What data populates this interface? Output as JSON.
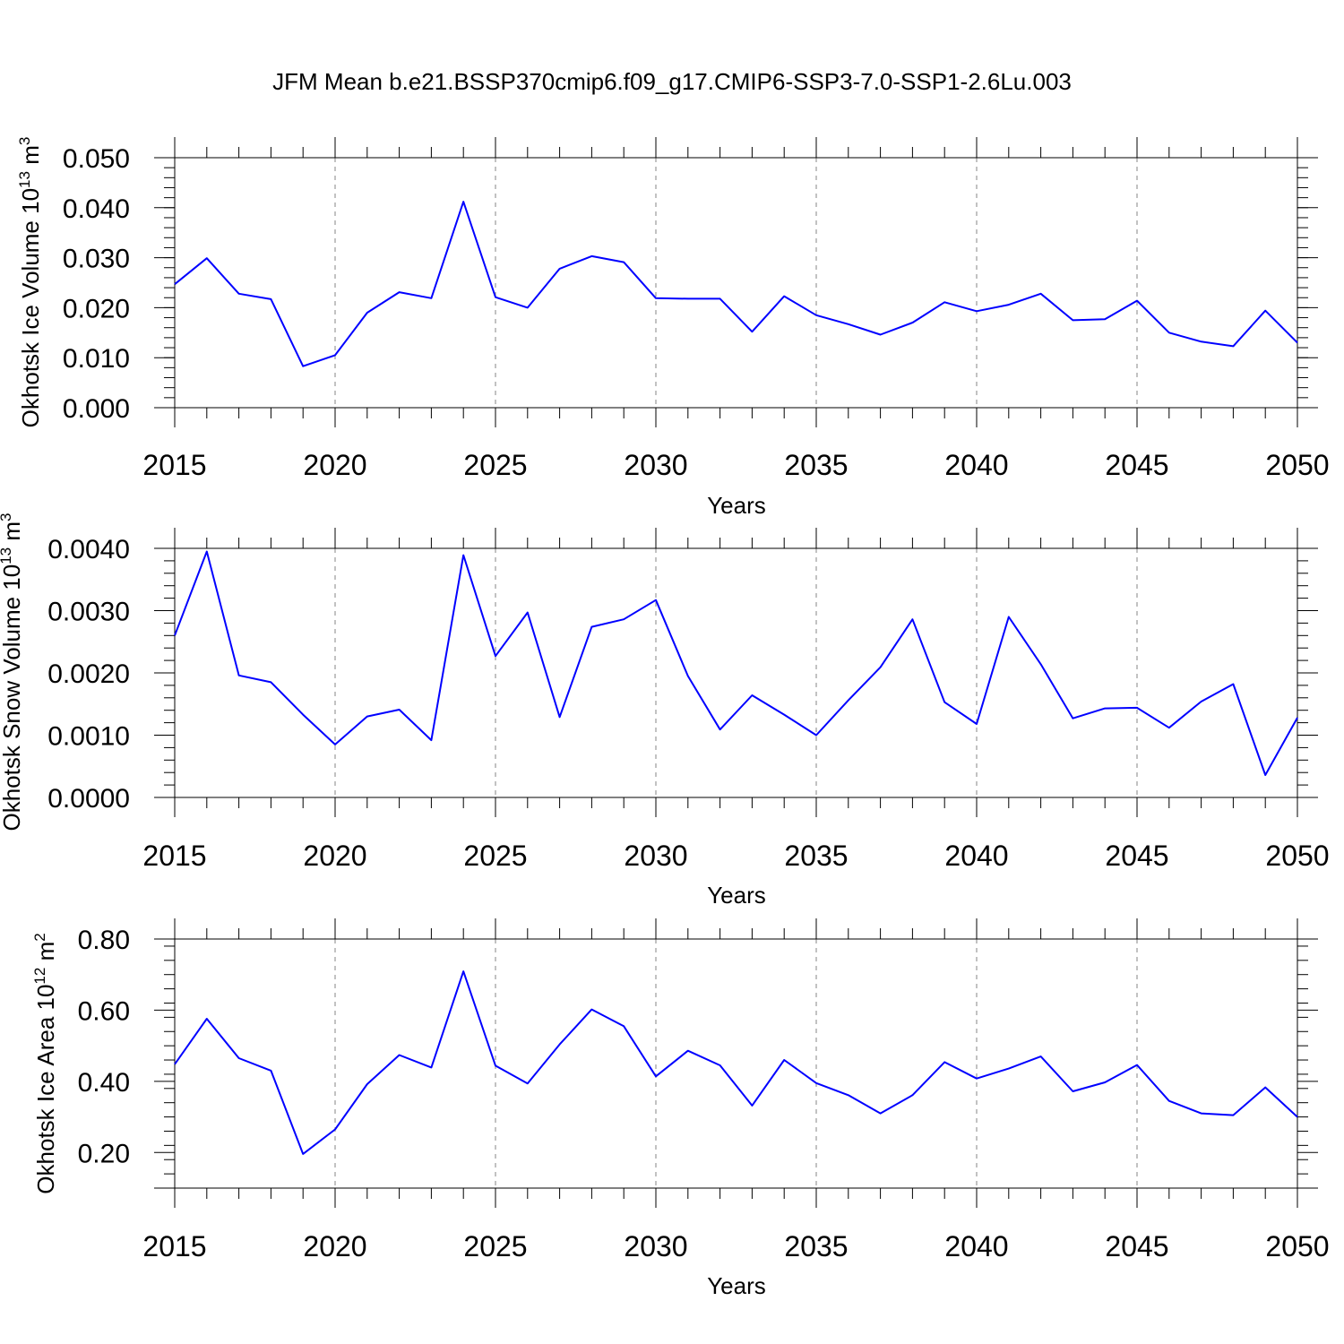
{
  "figure_title": "JFM Mean b.e21.BSSP370cmip6.f09_g17.CMIP6-SSP3-7.0-SSP1-2.6Lu.003",
  "line_color": "#0000ff",
  "chart_data": [
    {
      "type": "line",
      "ylabel_main": "Okhotsk Ice Volume 10",
      "ylabel_exp": "13",
      "ylabel_unit": " m",
      "ylabel_unit_exp": "3",
      "xlabel": "Years",
      "xlim": [
        2015,
        2050
      ],
      "ylim": [
        0.0,
        0.05
      ],
      "yticks": [
        0.0,
        0.01,
        0.02,
        0.03,
        0.04,
        0.05
      ],
      "ytick_labels": [
        "0.000",
        "0.010",
        "0.020",
        "0.030",
        "0.040",
        "0.050"
      ],
      "xticks": [
        2015,
        2020,
        2025,
        2030,
        2035,
        2040,
        2045,
        2050
      ],
      "xtick_labels": [
        "2015",
        "2020",
        "2025",
        "2030",
        "2035",
        "2040",
        "2045",
        "2050"
      ],
      "grid_x": [
        2020,
        2025,
        2030,
        2035,
        2040,
        2045
      ],
      "x": [
        2015,
        2016,
        2017,
        2018,
        2019,
        2020,
        2021,
        2022,
        2023,
        2024,
        2025,
        2026,
        2027,
        2028,
        2029,
        2030,
        2031,
        2032,
        2033,
        2034,
        2035,
        2036,
        2037,
        2038,
        2039,
        2040,
        2041,
        2042,
        2043,
        2044,
        2045,
        2046,
        2047,
        2048,
        2049,
        2050
      ],
      "y": [
        0.0247,
        0.0299,
        0.0228,
        0.0217,
        0.0083,
        0.0105,
        0.019,
        0.0231,
        0.0219,
        0.0412,
        0.0221,
        0.02,
        0.0278,
        0.0303,
        0.0291,
        0.0219,
        0.0218,
        0.0218,
        0.0152,
        0.0223,
        0.0185,
        0.0167,
        0.0146,
        0.017,
        0.0211,
        0.0193,
        0.0206,
        0.0228,
        0.0175,
        0.0177,
        0.0214,
        0.015,
        0.0132,
        0.0123,
        0.0194,
        0.013
      ]
    },
    {
      "type": "line",
      "ylabel_main": "Okhotsk Snow Volume 10",
      "ylabel_exp": "13",
      "ylabel_unit": " m",
      "ylabel_unit_exp": "3",
      "xlabel": "Years",
      "xlim": [
        2015,
        2050
      ],
      "ylim": [
        0.0,
        0.004
      ],
      "yticks": [
        0.0,
        0.001,
        0.002,
        0.003,
        0.004
      ],
      "ytick_labels": [
        "0.0000",
        "0.0010",
        "0.0020",
        "0.0030",
        "0.0040"
      ],
      "xticks": [
        2015,
        2020,
        2025,
        2030,
        2035,
        2040,
        2045,
        2050
      ],
      "xtick_labels": [
        "2015",
        "2020",
        "2025",
        "2030",
        "2035",
        "2040",
        "2045",
        "2050"
      ],
      "grid_x": [
        2020,
        2025,
        2030,
        2035,
        2040,
        2045
      ],
      "x": [
        2015,
        2016,
        2017,
        2018,
        2019,
        2020,
        2021,
        2022,
        2023,
        2024,
        2025,
        2026,
        2027,
        2028,
        2029,
        2030,
        2031,
        2032,
        2033,
        2034,
        2035,
        2036,
        2037,
        2038,
        2039,
        2040,
        2041,
        2042,
        2043,
        2044,
        2045,
        2046,
        2047,
        2048,
        2049,
        2050
      ],
      "y": [
        0.0026,
        0.00395,
        0.00196,
        0.00185,
        0.00133,
        0.00085,
        0.0013,
        0.00141,
        0.00092,
        0.00389,
        0.00227,
        0.00297,
        0.00129,
        0.00274,
        0.00286,
        0.00317,
        0.00195,
        0.00109,
        0.00164,
        0.00133,
        0.001,
        0.00156,
        0.00209,
        0.00286,
        0.00153,
        0.00118,
        0.0029,
        0.00214,
        0.00127,
        0.00143,
        0.00144,
        0.00112,
        0.00154,
        0.00182,
        0.00036,
        0.00128
      ]
    },
    {
      "type": "line",
      "ylabel_main": "Okhotsk Ice Area 10",
      "ylabel_exp": "12",
      "ylabel_unit": " m",
      "ylabel_unit_exp": "2",
      "xlabel": "Years",
      "xlim": [
        2015,
        2050
      ],
      "ylim": [
        0.1,
        0.8
      ],
      "yticks": [
        0.2,
        0.4,
        0.6,
        0.8
      ],
      "ytick_labels": [
        "0.20",
        "0.40",
        "0.60",
        "0.80"
      ],
      "xticks": [
        2015,
        2020,
        2025,
        2030,
        2035,
        2040,
        2045,
        2050
      ],
      "xtick_labels": [
        "2015",
        "2020",
        "2025",
        "2030",
        "2035",
        "2040",
        "2045",
        "2050"
      ],
      "grid_x": [
        2020,
        2025,
        2030,
        2035,
        2040,
        2045
      ],
      "x": [
        2015,
        2016,
        2017,
        2018,
        2019,
        2020,
        2021,
        2022,
        2023,
        2024,
        2025,
        2026,
        2027,
        2028,
        2029,
        2030,
        2031,
        2032,
        2033,
        2034,
        2035,
        2036,
        2037,
        2038,
        2039,
        2040,
        2041,
        2042,
        2043,
        2044,
        2045,
        2046,
        2047,
        2048,
        2049,
        2050
      ],
      "y": [
        0.448,
        0.576,
        0.465,
        0.43,
        0.196,
        0.265,
        0.392,
        0.474,
        0.439,
        0.709,
        0.444,
        0.394,
        0.504,
        0.602,
        0.555,
        0.414,
        0.486,
        0.445,
        0.332,
        0.46,
        0.395,
        0.361,
        0.31,
        0.361,
        0.454,
        0.408,
        0.436,
        0.47,
        0.372,
        0.397,
        0.446,
        0.345,
        0.31,
        0.305,
        0.383,
        0.3
      ]
    }
  ]
}
